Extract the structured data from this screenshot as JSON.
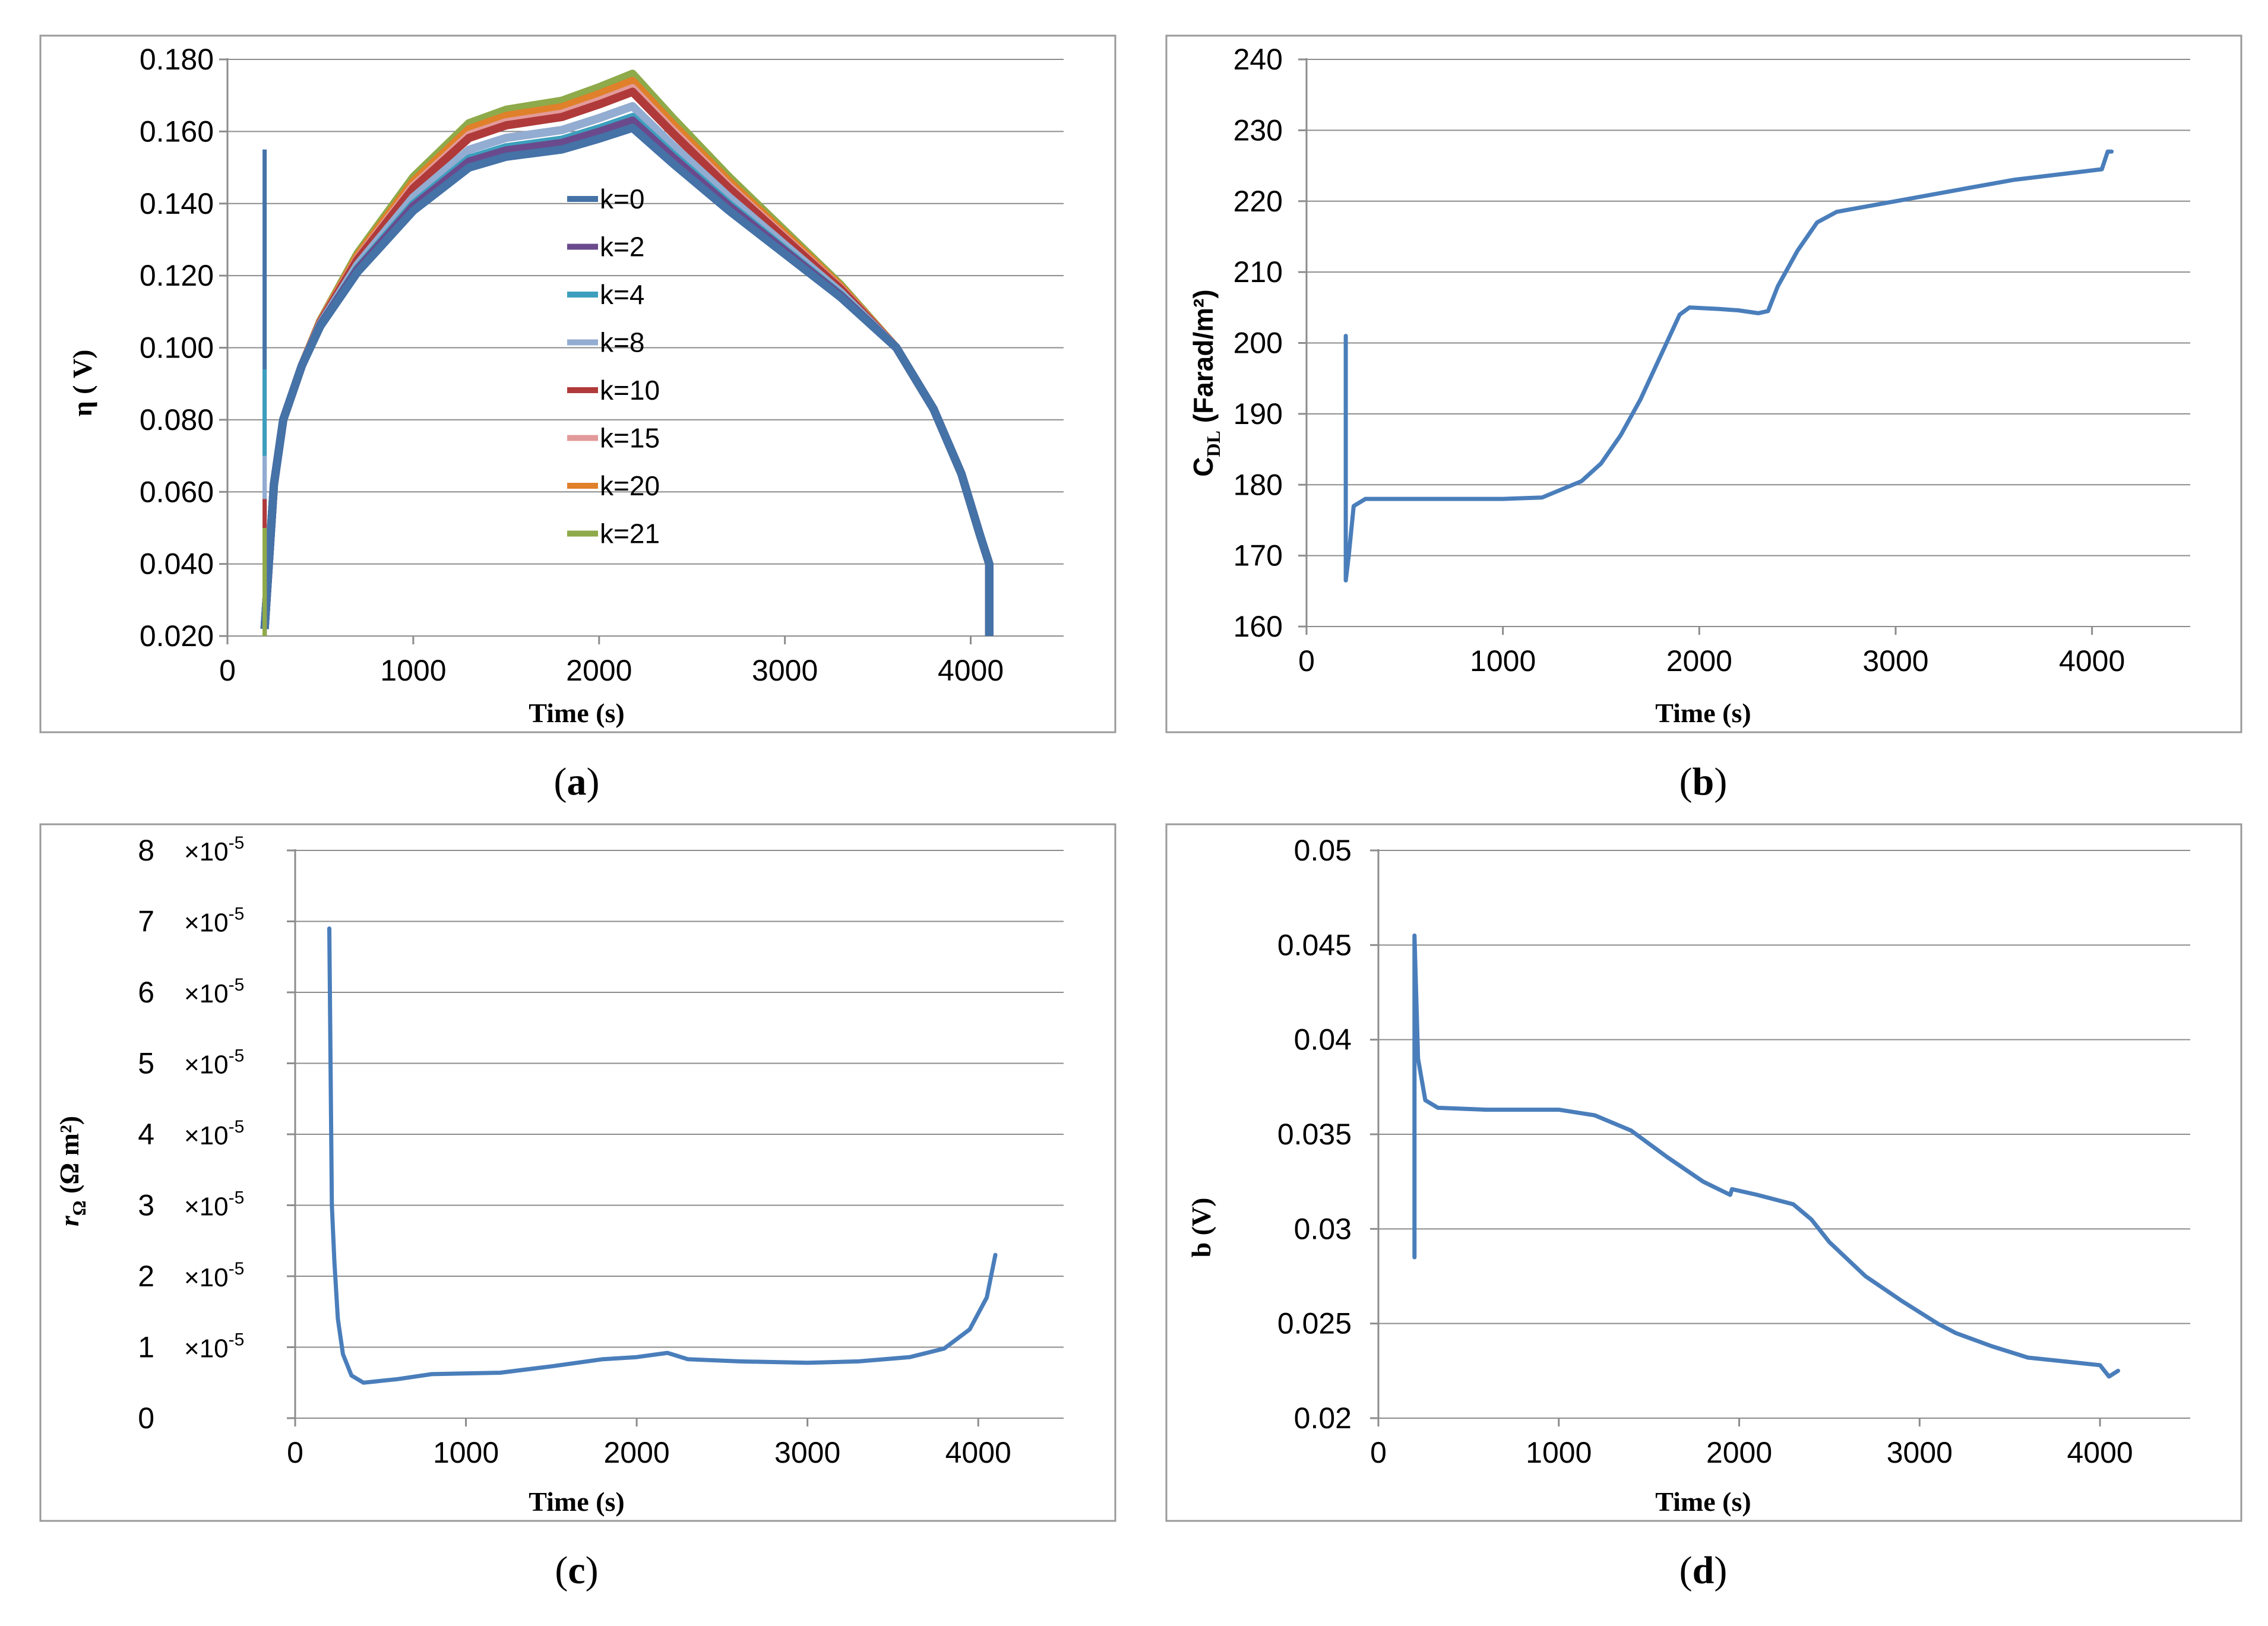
{
  "chart_data": [
    {
      "id": "a",
      "type": "line",
      "caption_letter": "a",
      "title": "",
      "xlabel": "Time (s)",
      "ylabel": "η ( V)",
      "xlim": [
        0,
        4500
      ],
      "ylim": [
        0.02,
        0.18
      ],
      "xticks": [
        0,
        1000,
        2000,
        3000,
        4000
      ],
      "xtick_labels": [
        "0",
        "1000",
        "2000",
        "3000",
        "4000"
      ],
      "yticks": [
        0.02,
        0.04,
        0.06,
        0.08,
        0.1,
        0.12,
        0.14,
        0.16,
        0.18
      ],
      "ytick_labels": [
        "0.020",
        "0.040",
        "0.060",
        "0.080",
        "0.100",
        "0.120",
        "0.140",
        "0.160",
        "0.180"
      ],
      "grid": true,
      "legend": "inside-center",
      "series": [
        {
          "name": "k=0",
          "color": "#4572a7",
          "spike": [
            200,
            0.155
          ],
          "peak": 0.161
        },
        {
          "name": "k=2",
          "color": "#6a4a8c",
          "spike": [
            200,
            0.058
          ],
          "peak": 0.163
        },
        {
          "name": "k=4",
          "color": "#3d9fbd",
          "spike": [
            200,
            0.094
          ],
          "peak": 0.164
        },
        {
          "name": "k=8",
          "color": "#93acd1",
          "spike": [
            200,
            0.07
          ],
          "peak": 0.167
        },
        {
          "name": "k=10",
          "color": "#b03a3a",
          "spike": [
            200,
            0.058
          ],
          "peak": 0.171
        },
        {
          "name": "k=15",
          "color": "#e39a9a",
          "spike": [
            200,
            0.05
          ],
          "peak": 0.172
        },
        {
          "name": "k=20",
          "color": "#e0802a",
          "spike": [
            200,
            0.05
          ],
          "peak": 0.174
        },
        {
          "name": "k=21",
          "color": "#8eaa4a",
          "spike": [
            200,
            0.05
          ],
          "peak": 0.176
        }
      ],
      "curve_points": [
        [
          200,
          0.022
        ],
        [
          250,
          0.062
        ],
        [
          300,
          0.08
        ],
        [
          400,
          0.095
        ],
        [
          500,
          0.106
        ],
        [
          700,
          0.121
        ],
        [
          1000,
          0.138
        ],
        [
          1300,
          0.15
        ],
        [
          1500,
          0.153
        ],
        [
          1800,
          0.155
        ],
        [
          2000,
          0.158
        ],
        [
          2180,
          0.161
        ],
        [
          2400,
          0.151
        ],
        [
          2700,
          0.138
        ],
        [
          3000,
          0.126
        ],
        [
          3300,
          0.114
        ],
        [
          3600,
          0.1
        ],
        [
          3800,
          0.083
        ],
        [
          3950,
          0.065
        ],
        [
          4050,
          0.048
        ],
        [
          4100,
          0.04
        ],
        [
          4100,
          0.02
        ]
      ]
    },
    {
      "id": "b",
      "type": "line",
      "caption_letter": "b",
      "title": "",
      "xlabel": "Time (s)",
      "ylabel_main": "C",
      "ylabel_sub": "DL",
      "ylabel_rest": " (Farad/m²)",
      "xlim": [
        0,
        4500
      ],
      "ylim": [
        160,
        240
      ],
      "xticks": [
        0,
        1000,
        2000,
        3000,
        4000
      ],
      "xtick_labels": [
        "0",
        "1000",
        "2000",
        "3000",
        "4000"
      ],
      "yticks": [
        160,
        170,
        180,
        190,
        200,
        210,
        220,
        230,
        240
      ],
      "ytick_labels": [
        "160",
        "170",
        "180",
        "190",
        "200",
        "210",
        "220",
        "230",
        "240"
      ],
      "grid": true,
      "color": "#4a7ebb",
      "points": [
        [
          200,
          201
        ],
        [
          200,
          166.5
        ],
        [
          215,
          170
        ],
        [
          240,
          177
        ],
        [
          300,
          178
        ],
        [
          600,
          178
        ],
        [
          1000,
          178
        ],
        [
          1200,
          178.2
        ],
        [
          1400,
          180.5
        ],
        [
          1500,
          183
        ],
        [
          1600,
          187
        ],
        [
          1700,
          192
        ],
        [
          1800,
          198
        ],
        [
          1900,
          204
        ],
        [
          1950,
          205
        ],
        [
          2100,
          204.8
        ],
        [
          2200,
          204.6
        ],
        [
          2300,
          204.2
        ],
        [
          2350,
          204.5
        ],
        [
          2400,
          208
        ],
        [
          2500,
          213
        ],
        [
          2600,
          217
        ],
        [
          2700,
          218.5
        ],
        [
          3000,
          220
        ],
        [
          3300,
          221.5
        ],
        [
          3600,
          223
        ],
        [
          3900,
          224
        ],
        [
          4050,
          224.5
        ],
        [
          4080,
          227
        ],
        [
          4100,
          227
        ]
      ]
    },
    {
      "id": "c",
      "type": "line",
      "caption_letter": "c",
      "title": "",
      "xlabel": "Time (s)",
      "ylabel_main": "r",
      "ylabel_sub": "Ω",
      "ylabel_rest": " (Ω m²)",
      "xlim": [
        0,
        4500
      ],
      "ylim": [
        0,
        8e-05
      ],
      "xticks": [
        0,
        1000,
        2000,
        3000,
        4000
      ],
      "xtick_labels": [
        "0",
        "1000",
        "2000",
        "3000",
        "4000"
      ],
      "yticks": [
        0,
        1e-05,
        2e-05,
        3e-05,
        4e-05,
        5e-05,
        6e-05,
        7e-05,
        8e-05
      ],
      "ytick_mantissa": [
        "0",
        "1",
        "2",
        "3",
        "4",
        "5",
        "6",
        "7",
        "8"
      ],
      "ytick_factor": "×10",
      "ytick_exp": "-5",
      "grid": true,
      "color": "#4a7ebb",
      "points": [
        [
          200,
          6.9e-05
        ],
        [
          215,
          3e-05
        ],
        [
          230,
          2.2e-05
        ],
        [
          250,
          1.4e-05
        ],
        [
          280,
          9e-06
        ],
        [
          330,
          6e-06
        ],
        [
          400,
          5e-06
        ],
        [
          600,
          5.5e-06
        ],
        [
          800,
          6.2e-06
        ],
        [
          1200,
          6.4e-06
        ],
        [
          1500,
          7.3e-06
        ],
        [
          1800,
          8.3e-06
        ],
        [
          2000,
          8.6e-06
        ],
        [
          2180,
          9.2e-06
        ],
        [
          2300,
          8.3e-06
        ],
        [
          2600,
          8e-06
        ],
        [
          3000,
          7.8e-06
        ],
        [
          3300,
          8e-06
        ],
        [
          3600,
          8.6e-06
        ],
        [
          3800,
          9.8e-06
        ],
        [
          3950,
          1.25e-05
        ],
        [
          4050,
          1.7e-05
        ],
        [
          4100,
          2.3e-05
        ]
      ]
    },
    {
      "id": "d",
      "type": "line",
      "caption_letter": "d",
      "title": "",
      "xlabel": "Time (s)",
      "ylabel": "b (V)",
      "xlim": [
        0,
        4500
      ],
      "ylim": [
        0.02,
        0.05
      ],
      "xticks": [
        0,
        1000,
        2000,
        3000,
        4000
      ],
      "xtick_labels": [
        "0",
        "1000",
        "2000",
        "3000",
        "4000"
      ],
      "yticks": [
        0.02,
        0.025,
        0.03,
        0.035,
        0.04,
        0.045,
        0.05
      ],
      "ytick_labels": [
        "0.02",
        "0.025",
        "0.03",
        "0.035",
        "0.04",
        "0.045",
        "0.05"
      ],
      "grid": true,
      "color": "#4a7ebb",
      "points": [
        [
          200,
          0.0285
        ],
        [
          200,
          0.0455
        ],
        [
          220,
          0.039
        ],
        [
          260,
          0.0368
        ],
        [
          330,
          0.0364
        ],
        [
          600,
          0.0363
        ],
        [
          1000,
          0.0363
        ],
        [
          1200,
          0.036
        ],
        [
          1400,
          0.0352
        ],
        [
          1600,
          0.0338
        ],
        [
          1800,
          0.0325
        ],
        [
          1950,
          0.0318
        ],
        [
          1960,
          0.0321
        ],
        [
          2100,
          0.0318
        ],
        [
          2300,
          0.0313
        ],
        [
          2400,
          0.0305
        ],
        [
          2500,
          0.0293
        ],
        [
          2700,
          0.0275
        ],
        [
          2900,
          0.0262
        ],
        [
          3100,
          0.025
        ],
        [
          3200,
          0.0245
        ],
        [
          3400,
          0.0238
        ],
        [
          3600,
          0.0232
        ],
        [
          3800,
          0.023
        ],
        [
          4000,
          0.0228
        ],
        [
          4050,
          0.0222
        ],
        [
          4100,
          0.0225
        ]
      ]
    }
  ]
}
